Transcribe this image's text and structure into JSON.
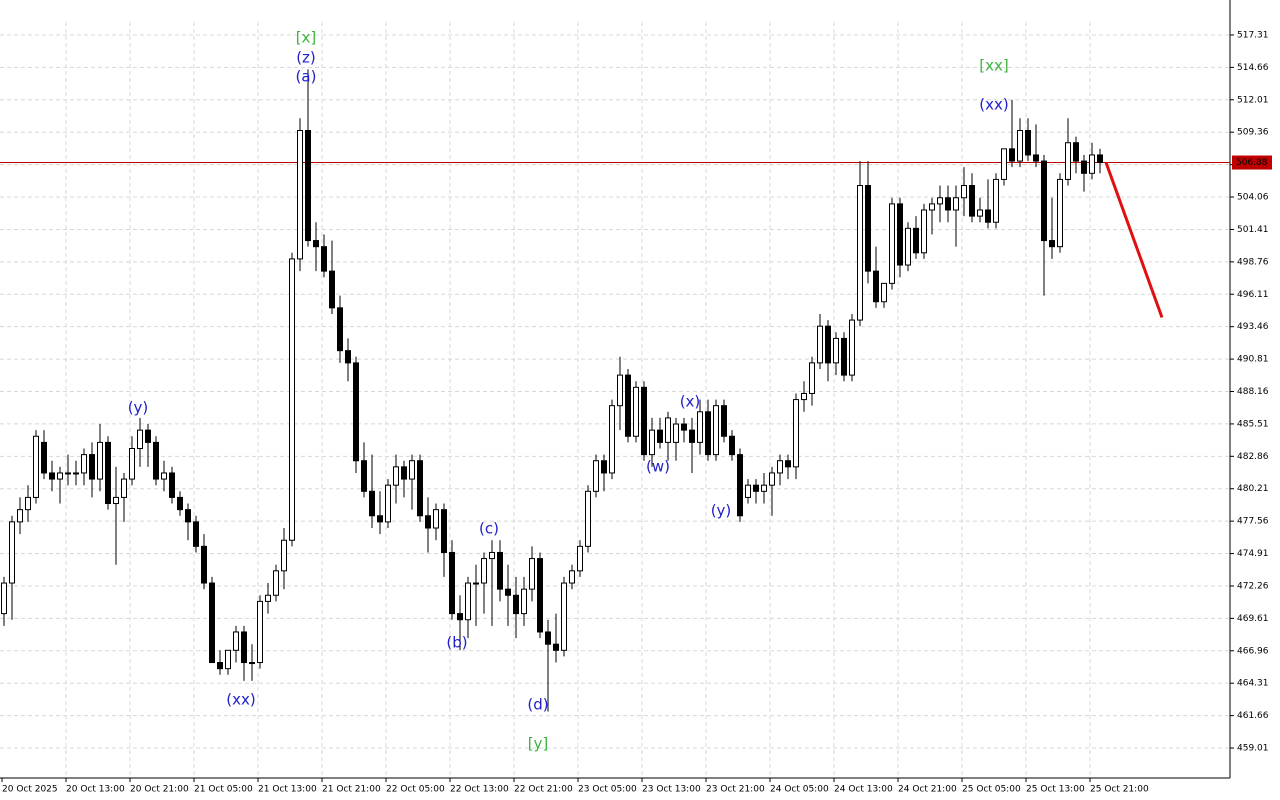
{
  "chart_data": {
    "type": "candlestick",
    "ylim": [
      456.56,
      518.37
    ],
    "yticks": [
      459.01,
      461.66,
      464.31,
      466.96,
      469.61,
      472.26,
      474.91,
      477.56,
      480.21,
      482.86,
      485.51,
      488.16,
      490.81,
      493.46,
      496.11,
      498.76,
      501.41,
      504.06,
      506.71,
      509.36,
      512.01,
      514.66,
      517.31
    ],
    "grid": true,
    "x_labels": [
      "20 Oct 2025",
      "20 Oct 13:00",
      "20 Oct 21:00",
      "21 Oct 05:00",
      "21 Oct 13:00",
      "21 Oct 21:00",
      "22 Oct 05:00",
      "22 Oct 13:00",
      "22 Oct 21:00",
      "23 Oct 05:00",
      "23 Oct 13:00",
      "23 Oct 21:00",
      "24 Oct 05:00",
      "24 Oct 13:00",
      "24 Oct 21:00",
      "25 Oct 05:00",
      "25 Oct 13:00",
      "25 Oct 21:00"
    ],
    "current_price": 506.88,
    "price_color": "#c00000",
    "forecast": {
      "color": "#e01010",
      "values": [
        506.88,
        494.21
      ]
    },
    "candles": [
      [
        470,
        473,
        469,
        472.5
      ],
      [
        472.5,
        478,
        469.5,
        477.5
      ],
      [
        477.5,
        479.5,
        476.5,
        478.5
      ],
      [
        478.5,
        480.5,
        477.5,
        479.5
      ],
      [
        479.5,
        485,
        479,
        484.5
      ],
      [
        484,
        485,
        481,
        481.5
      ],
      [
        481.5,
        482.5,
        480,
        481
      ],
      [
        481,
        482,
        479,
        481.5
      ],
      [
        481.5,
        483,
        480.5,
        481.5
      ],
      [
        481.5,
        482.5,
        480.5,
        481.5
      ],
      [
        481.5,
        483.5,
        480.5,
        483
      ],
      [
        483,
        484,
        479.5,
        481
      ],
      [
        481,
        485.5,
        480,
        484
      ],
      [
        484,
        484.5,
        478.5,
        479
      ],
      [
        479,
        482,
        474,
        479.5
      ],
      [
        479.5,
        481.5,
        477.5,
        481
      ],
      [
        481,
        484.5,
        480.5,
        483.5
      ],
      [
        483.5,
        486,
        482,
        485
      ],
      [
        485,
        485.5,
        482,
        484
      ],
      [
        484,
        484.5,
        480.5,
        481
      ],
      [
        481,
        482.5,
        480,
        481.5
      ],
      [
        481.5,
        482,
        479,
        479.5
      ],
      [
        479.5,
        480,
        478,
        478.5
      ],
      [
        478.5,
        479,
        476,
        477.5
      ],
      [
        477.5,
        478,
        475,
        475.5
      ],
      [
        475.5,
        476.5,
        472,
        472.5
      ],
      [
        472.5,
        473,
        466,
        466
      ],
      [
        466,
        467,
        465,
        465.5
      ],
      [
        465.5,
        467,
        465,
        467
      ],
      [
        467,
        469,
        466,
        468.5
      ],
      [
        468.5,
        469,
        464.5,
        466
      ],
      [
        466,
        467.5,
        464.5,
        466
      ],
      [
        466,
        471.5,
        465.5,
        471
      ],
      [
        471,
        472.5,
        470,
        471.5
      ],
      [
        471.5,
        474,
        471,
        473.5
      ],
      [
        473.5,
        477,
        472,
        476
      ],
      [
        476,
        499.5,
        475.5,
        499
      ],
      [
        499,
        510.5,
        498,
        509.5
      ],
      [
        509.5,
        514.5,
        500,
        500.5
      ],
      [
        500.5,
        502,
        498,
        500
      ],
      [
        500,
        501,
        497.5,
        498
      ],
      [
        498,
        500.5,
        494.5,
        495
      ],
      [
        495,
        496,
        490.5,
        491.5
      ],
      [
        491.5,
        492.5,
        489,
        490.5
      ],
      [
        490.5,
        491,
        481.5,
        482.5
      ],
      [
        482.5,
        484,
        479.5,
        480
      ],
      [
        480,
        483,
        477,
        478
      ],
      [
        478,
        480,
        476.5,
        477.5
      ],
      [
        477.5,
        481,
        477,
        480.5
      ],
      [
        480.5,
        483,
        479,
        482
      ],
      [
        482,
        482.5,
        479.5,
        481
      ],
      [
        481,
        483,
        478.5,
        482.5
      ],
      [
        482.5,
        483,
        477.5,
        478
      ],
      [
        478,
        479.5,
        475,
        477
      ],
      [
        477,
        479,
        476,
        478.5
      ],
      [
        478.5,
        479,
        473,
        475
      ],
      [
        475,
        476,
        469.5,
        470
      ],
      [
        470,
        471.5,
        467,
        469.5
      ],
      [
        469.5,
        473,
        468,
        472.5
      ],
      [
        472.5,
        474,
        469,
        472.5
      ],
      [
        472.5,
        475,
        470,
        474.5
      ],
      [
        474.5,
        476,
        469,
        475
      ],
      [
        475,
        476,
        471,
        472
      ],
      [
        472,
        474,
        469,
        471.5
      ],
      [
        471.5,
        473,
        468,
        470
      ],
      [
        470,
        473,
        469,
        472
      ],
      [
        472,
        475.5,
        471,
        474.5
      ],
      [
        474.5,
        475,
        468,
        468.5
      ],
      [
        468.5,
        469.5,
        462,
        467.5
      ],
      [
        467.5,
        470,
        466,
        467
      ],
      [
        467,
        473,
        466.5,
        472.5
      ],
      [
        472.5,
        474,
        472,
        473.5
      ],
      [
        473.5,
        476,
        473,
        475.5
      ],
      [
        475.5,
        480.5,
        475,
        480
      ],
      [
        480,
        483,
        479.5,
        482.5
      ],
      [
        482.5,
        483,
        480,
        481.5
      ],
      [
        481.5,
        487.5,
        481,
        487
      ],
      [
        487,
        491,
        485,
        489.5
      ],
      [
        489.5,
        490,
        484,
        484.5
      ],
      [
        484.5,
        489,
        484,
        488.5
      ],
      [
        488.5,
        489,
        482.5,
        483
      ],
      [
        483,
        486,
        482,
        485
      ],
      [
        485,
        486,
        483.5,
        484
      ],
      [
        484,
        486.5,
        482.5,
        486
      ],
      [
        484,
        486,
        482.5,
        485.5
      ],
      [
        485.5,
        486,
        484,
        485
      ],
      [
        485,
        486,
        481.5,
        484
      ],
      [
        484,
        487.5,
        483,
        486.5
      ],
      [
        486.5,
        487.5,
        482.5,
        483
      ],
      [
        483,
        487.5,
        482.5,
        487
      ],
      [
        487,
        487.5,
        484,
        484.5
      ],
      [
        484.5,
        485,
        482.5,
        483
      ],
      [
        483,
        483.5,
        477.5,
        478
      ],
      [
        479.5,
        481,
        479,
        480.5
      ],
      [
        480.5,
        481,
        479,
        480
      ],
      [
        480,
        481.5,
        479,
        480.5
      ],
      [
        480.5,
        482,
        478,
        481.5
      ],
      [
        481.5,
        483,
        480.5,
        482.5
      ],
      [
        482.5,
        483,
        481,
        482
      ],
      [
        482,
        488,
        481,
        487.5
      ],
      [
        487.5,
        489,
        486.5,
        488
      ],
      [
        488,
        491,
        487,
        490.5
      ],
      [
        490.5,
        494.5,
        490,
        493.5
      ],
      [
        493.5,
        494,
        489,
        490.5
      ],
      [
        490.5,
        493,
        489.5,
        492.5
      ],
      [
        492.5,
        493,
        489,
        489.5
      ],
      [
        489.5,
        494.5,
        489,
        494
      ],
      [
        494,
        507,
        493.5,
        505
      ],
      [
        505,
        507,
        497,
        498
      ],
      [
        498,
        500,
        495,
        495.5
      ],
      [
        495.5,
        497,
        495,
        497
      ],
      [
        497,
        504,
        496.5,
        503.5
      ],
      [
        503.5,
        504,
        497.5,
        498.5
      ],
      [
        498.5,
        502,
        498,
        501.5
      ],
      [
        501.5,
        502.5,
        499,
        499.5
      ],
      [
        499.5,
        503.5,
        499,
        503
      ],
      [
        503,
        504,
        501,
        503.5
      ],
      [
        503.5,
        505,
        502,
        504
      ],
      [
        504,
        505,
        502,
        503
      ],
      [
        503,
        505,
        500,
        504
      ],
      [
        504,
        506.5,
        502.5,
        505
      ],
      [
        505,
        506,
        502,
        502.5
      ],
      [
        502.5,
        504,
        502,
        503
      ],
      [
        503,
        505.5,
        501.5,
        502
      ],
      [
        502,
        506,
        501.5,
        505.5
      ],
      [
        505.5,
        508,
        505,
        508
      ],
      [
        508,
        512,
        506.5,
        507
      ],
      [
        507,
        510.5,
        506.5,
        509.5
      ],
      [
        509.5,
        510.5,
        507,
        507.5
      ],
      [
        507.5,
        510,
        506.5,
        507
      ],
      [
        507,
        507.5,
        496,
        500.5
      ],
      [
        500.5,
        504,
        499,
        500
      ],
      [
        500,
        506,
        499.5,
        505.5
      ],
      [
        505.5,
        510.5,
        505,
        508.5
      ],
      [
        508.5,
        509,
        506,
        507
      ],
      [
        507,
        507.5,
        504.5,
        506
      ],
      [
        506,
        508.5,
        505.5,
        507.5
      ],
      [
        507.5,
        508,
        506,
        506.88
      ]
    ],
    "annotations": [
      {
        "text": "[x]",
        "color": "#3cb43c"
      },
      {
        "text": "(z)",
        "color": "#2020cc"
      },
      {
        "text": "(a)",
        "color": "#2020cc"
      },
      {
        "text": "(y)",
        "color": "#2020cc"
      },
      {
        "text": "(xx)",
        "color": "#2020cc"
      },
      {
        "text": "(b)",
        "color": "#2020cc"
      },
      {
        "text": "(c)",
        "color": "#2020cc"
      },
      {
        "text": "(d)",
        "color": "#2020cc"
      },
      {
        "text": "[y]",
        "color": "#3cb43c"
      },
      {
        "text": "(w)",
        "color": "#2020cc"
      },
      {
        "text": "(x)",
        "color": "#2020cc"
      },
      {
        "text": "(y)",
        "color": "#2020cc"
      },
      {
        "text": "[xx]",
        "color": "#3cb43c"
      },
      {
        "text": "(xx)",
        "color": "#2020cc"
      }
    ]
  }
}
